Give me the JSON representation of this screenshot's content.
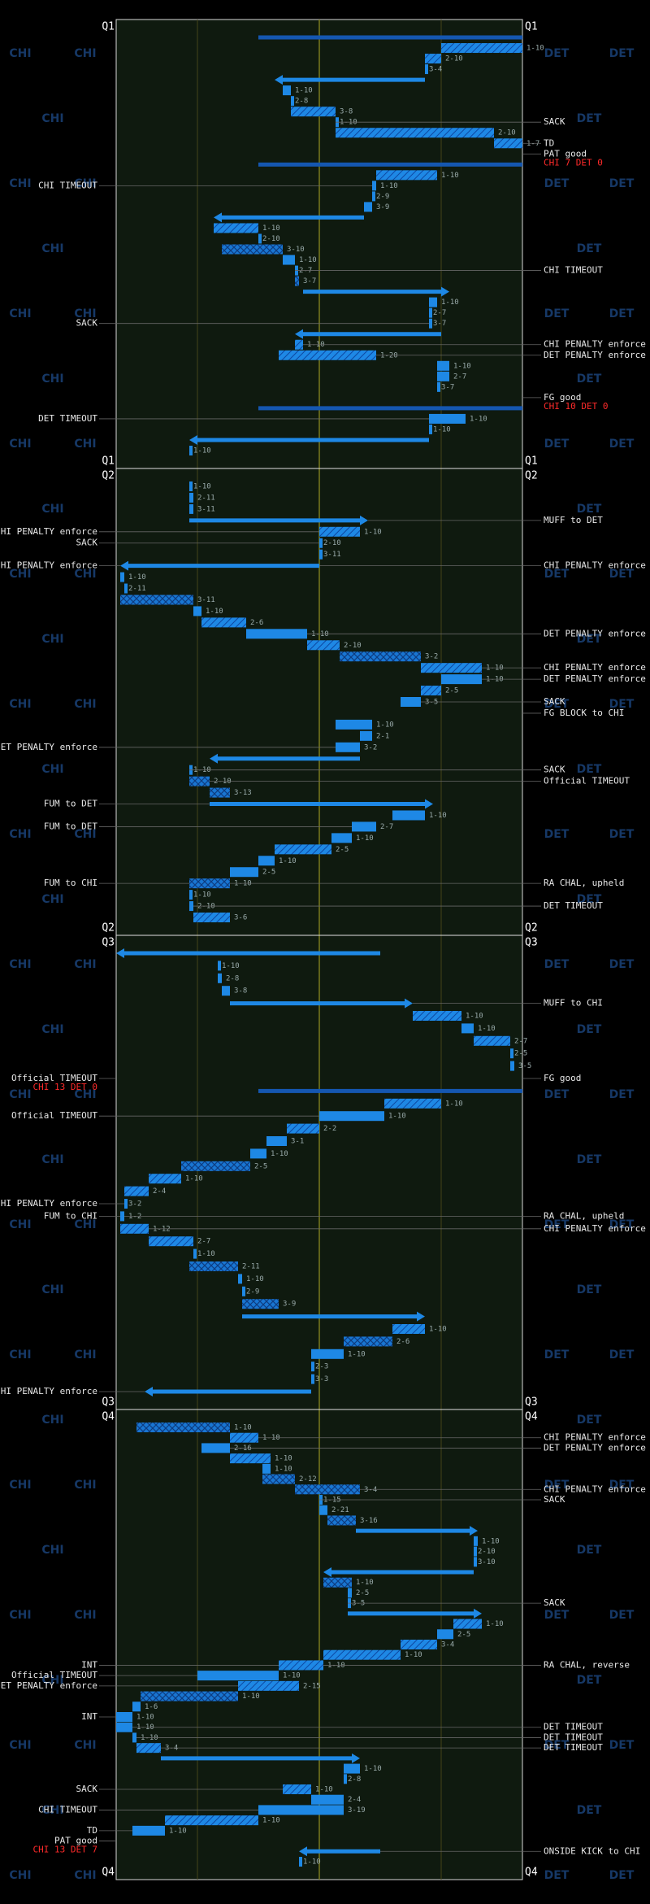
{
  "watermark": {
    "left": "CHI",
    "right": "DET"
  },
  "yard_lines": [
    20,
    50,
    80
  ],
  "quarters": [
    {
      "name": "Q1",
      "plays": [
        {
          "kind": "kick",
          "from": 35,
          "to": 100
        },
        {
          "dd": "1-10",
          "from": 100,
          "to": 80,
          "kind": "pass"
        },
        {
          "dd": "2-10",
          "from": 80,
          "to": 76,
          "kind": "pass"
        },
        {
          "dd": "3-4",
          "from": 76,
          "to": 76,
          "kind": "solid"
        },
        {
          "kind": "punt",
          "from": 76,
          "to": 39
        },
        {
          "dd": "1-10",
          "from": 41,
          "to": 43,
          "kind": "solid"
        },
        {
          "dd": "2-8",
          "from": 43,
          "to": 43,
          "kind": "solid"
        },
        {
          "dd": "3-8",
          "from": 43,
          "to": 54,
          "kind": "pass"
        },
        {
          "dd": "1-10",
          "from": 54,
          "to": 54,
          "kind": "solid",
          "right": "SACK"
        },
        {
          "dd": "2-10",
          "from": 54,
          "to": 93,
          "kind": "pass"
        },
        {
          "dd": "1-7",
          "from": 93,
          "to": 100,
          "kind": "pass",
          "right": "TD"
        },
        {
          "kind": "fg",
          "right": "PAT good",
          "score": "CHI 7 DET 0"
        },
        {
          "kind": "kick",
          "from": 35,
          "to": 100
        },
        {
          "dd": "1-10",
          "from": 79,
          "to": 64,
          "kind": "pass"
        },
        {
          "dd": "1-10",
          "from": 64,
          "to": 63,
          "kind": "solid",
          "left": "CHI TIMEOUT"
        },
        {
          "dd": "2-9",
          "from": 63,
          "to": 63,
          "kind": "solid"
        },
        {
          "dd": "3-9",
          "from": 63,
          "to": 61,
          "kind": "solid"
        },
        {
          "kind": "punt",
          "from": 61,
          "to": 24
        },
        {
          "dd": "1-10",
          "from": 24,
          "to": 35,
          "kind": "pass"
        },
        {
          "dd": "2-10",
          "from": 35,
          "to": 35,
          "kind": "solid"
        },
        {
          "dd": "3-10",
          "from": 26,
          "to": 41,
          "kind": "cross"
        },
        {
          "dd": "1-10",
          "from": 41,
          "to": 44,
          "kind": "solid"
        },
        {
          "dd": "2-7",
          "from": 44,
          "to": 44,
          "kind": "solid",
          "right": "CHI TIMEOUT"
        },
        {
          "dd": "3-7",
          "from": 44,
          "to": 45,
          "kind": "cross"
        },
        {
          "kind": "punt",
          "from": 46,
          "to": 82
        },
        {
          "dd": "1-10",
          "from": 79,
          "to": 77,
          "kind": "solid"
        },
        {
          "dd": "2-7",
          "from": 77,
          "to": 77,
          "kind": "solid"
        },
        {
          "dd": "3-7",
          "from": 77,
          "to": 77,
          "kind": "solid",
          "left": "SACK"
        },
        {
          "kind": "punt",
          "from": 80,
          "to": 44
        },
        {
          "dd": "1-10",
          "from": 44,
          "to": 46,
          "kind": "pass",
          "right": "CHI PENALTY enforce"
        },
        {
          "dd": "1-20",
          "from": 40,
          "to": 64,
          "kind": "pass",
          "right": "DET PENALTY enforce"
        },
        {
          "dd": "1-10",
          "from": 82,
          "to": 79,
          "kind": "solid"
        },
        {
          "dd": "2-7",
          "from": 79,
          "to": 82,
          "kind": "solid"
        },
        {
          "dd": "3-7",
          "from": 79,
          "to": 79,
          "kind": "solid"
        },
        {
          "kind": "fg",
          "right": "FG good",
          "score": "CHI 10 DET 0"
        },
        {
          "kind": "kick",
          "from": 35,
          "to": 100
        },
        {
          "dd": "1-10",
          "from": 86,
          "to": 77,
          "kind": "solid",
          "left": "DET TIMEOUT"
        },
        {
          "dd": "1-10",
          "from": 77,
          "to": 77,
          "kind": "solid"
        },
        {
          "kind": "punt",
          "from": 77,
          "to": 18
        },
        {
          "dd": "1-10",
          "from": 18,
          "to": 18,
          "kind": "solid"
        }
      ]
    },
    {
      "name": "Q2",
      "plays": [
        {
          "dd": "1-10",
          "from": 18,
          "to": 18,
          "kind": "solid"
        },
        {
          "dd": "2-11",
          "from": 18,
          "to": 19,
          "kind": "solid"
        },
        {
          "dd": "3-11",
          "from": 19,
          "to": 18,
          "kind": "solid"
        },
        {
          "kind": "punt",
          "from": 18,
          "to": 62,
          "right": "MUFF to DET"
        },
        {
          "dd": "1-10",
          "from": 60,
          "to": 50,
          "kind": "pass",
          "left": "CHI PENALTY enforce"
        },
        {
          "dd": "2-10",
          "from": 50,
          "to": 50,
          "kind": "solid",
          "left": "SACK"
        },
        {
          "dd": "3-11",
          "from": 50,
          "to": 50,
          "kind": "solid"
        },
        {
          "kind": "punt",
          "from": 50,
          "to": 1,
          "left": "CHI PENALTY enforce",
          "right": "CHI PENALTY enforce"
        },
        {
          "dd": "1-10",
          "from": 1,
          "to": 2,
          "kind": "solid"
        },
        {
          "dd": "2-11",
          "from": 2,
          "to": 2,
          "kind": "solid"
        },
        {
          "dd": "3-11",
          "from": 1,
          "to": 19,
          "kind": "cross"
        },
        {
          "dd": "1-10",
          "from": 19,
          "to": 21,
          "kind": "solid"
        },
        {
          "dd": "2-6",
          "from": 21,
          "to": 32,
          "kind": "pass"
        },
        {
          "dd": "1-10",
          "from": 32,
          "to": 47,
          "kind": "solid",
          "right": "DET PENALTY enforce"
        },
        {
          "dd": "2-10",
          "from": 47,
          "to": 55,
          "kind": "pass"
        },
        {
          "dd": "3-2",
          "from": 55,
          "to": 75,
          "kind": "cross"
        },
        {
          "dd": "1-10",
          "from": 75,
          "to": 90,
          "kind": "pass",
          "right": "CHI PENALTY enforce"
        },
        {
          "dd": "1-10",
          "from": 90,
          "to": 80,
          "kind": "solid",
          "right": "DET PENALTY enforce"
        },
        {
          "dd": "2-5",
          "from": 80,
          "to": 75,
          "kind": "pass"
        },
        {
          "dd": "3-5",
          "from": 75,
          "to": 70,
          "kind": "solid",
          "right": "SACK"
        },
        {
          "kind": "fg",
          "right": "FG BLOCK to CHI"
        },
        {
          "dd": "1-10",
          "from": 54,
          "to": 63,
          "kind": "solid"
        },
        {
          "dd": "2-1",
          "from": 63,
          "to": 60,
          "kind": "solid"
        },
        {
          "dd": "3-2",
          "from": 60,
          "to": 54,
          "kind": "solid",
          "left": "DET PENALTY enforce"
        },
        {
          "kind": "punt",
          "from": 60,
          "to": 23
        },
        {
          "dd": "1-10",
          "from": 18,
          "to": 18,
          "kind": "solid",
          "right": "SACK"
        },
        {
          "dd": "2-10",
          "from": 18,
          "to": 23,
          "kind": "cross",
          "right": "Official TIMEOUT"
        },
        {
          "dd": "3-13",
          "from": 23,
          "to": 28,
          "kind": "cross"
        },
        {
          "kind": "punt",
          "from": 23,
          "to": 78,
          "left": "FUM to DET"
        },
        {
          "dd": "1-10",
          "from": 76,
          "to": 68,
          "kind": "solid"
        },
        {
          "dd": "2-7",
          "from": 64,
          "to": 58,
          "kind": "solid",
          "left": "FUM to DET"
        },
        {
          "dd": "1-10",
          "from": 58,
          "to": 53,
          "kind": "solid"
        },
        {
          "dd": "2-5",
          "from": 53,
          "to": 39,
          "kind": "pass"
        },
        {
          "dd": "1-10",
          "from": 39,
          "to": 35,
          "kind": "solid"
        },
        {
          "dd": "2-5",
          "from": 35,
          "to": 28,
          "kind": "solid"
        },
        {
          "dd": "1-10",
          "from": 28,
          "to": 18,
          "kind": "cross",
          "left": "FUM to CHI",
          "right": "RA CHAL, upheld"
        },
        {
          "dd": "1-10",
          "from": 18,
          "to": 18,
          "kind": "solid"
        },
        {
          "dd": "2-10",
          "from": 18,
          "to": 19,
          "kind": "solid",
          "right": "DET TIMEOUT"
        },
        {
          "dd": "3-6",
          "from": 19,
          "to": 28,
          "kind": "pass"
        }
      ]
    },
    {
      "name": "Q3",
      "plays": [
        {
          "kind": "punt",
          "from": 65,
          "to": 0
        },
        {
          "dd": "1-10",
          "from": 25,
          "to": 25,
          "kind": "solid"
        },
        {
          "dd": "2-8",
          "from": 25,
          "to": 26,
          "kind": "solid"
        },
        {
          "dd": "3-8",
          "from": 26,
          "to": 28,
          "kind": "solid"
        },
        {
          "kind": "punt",
          "from": 28,
          "to": 73,
          "right": "MUFF to CHI"
        },
        {
          "dd": "1-10",
          "from": 73,
          "to": 85,
          "kind": "pass"
        },
        {
          "dd": "1-10",
          "from": 85,
          "to": 88,
          "kind": "solid"
        },
        {
          "dd": "2-7",
          "from": 88,
          "to": 97,
          "kind": "pass"
        },
        {
          "dd": "2-5",
          "from": 97,
          "to": 97,
          "kind": "solid"
        },
        {
          "dd": "3-5",
          "from": 97,
          "to": 98,
          "kind": "solid"
        },
        {
          "kind": "fg",
          "left": "Official TIMEOUT",
          "right": "FG good",
          "score": "CHI 13 DET 0"
        },
        {
          "kind": "kick",
          "from": 35,
          "to": 100
        },
        {
          "dd": "1-10",
          "from": 80,
          "to": 66,
          "kind": "pass"
        },
        {
          "dd": "1-10",
          "from": 66,
          "to": 50,
          "kind": "solid",
          "left": "Official TIMEOUT"
        },
        {
          "dd": "2-2",
          "from": 50,
          "to": 42,
          "kind": "pass"
        },
        {
          "dd": "3-1",
          "from": 42,
          "to": 37,
          "kind": "solid"
        },
        {
          "dd": "1-10",
          "from": 37,
          "to": 33,
          "kind": "solid"
        },
        {
          "dd": "2-5",
          "from": 33,
          "to": 16,
          "kind": "cross"
        },
        {
          "dd": "1-10",
          "from": 16,
          "to": 8,
          "kind": "pass"
        },
        {
          "dd": "2-4",
          "from": 8,
          "to": 2,
          "kind": "pass"
        },
        {
          "dd": "3-2",
          "from": 2,
          "to": 2,
          "kind": "solid",
          "left": "CHI PENALTY enforce"
        },
        {
          "dd": "1-2",
          "from": 2,
          "to": 1,
          "kind": "solid",
          "left": "FUM to CHI",
          "right": "RA CHAL, upheld"
        },
        {
          "dd": "1-12",
          "from": 1,
          "to": 8,
          "kind": "pass",
          "right": "CHI PENALTY enforce"
        },
        {
          "dd": "2-7",
          "from": 8,
          "to": 19,
          "kind": "pass"
        },
        {
          "dd": "1-10",
          "from": 19,
          "to": 19,
          "kind": "solid"
        },
        {
          "dd": "2-11",
          "from": 18,
          "to": 30,
          "kind": "cross"
        },
        {
          "dd": "1-10",
          "from": 30,
          "to": 31,
          "kind": "solid"
        },
        {
          "dd": "2-9",
          "from": 31,
          "to": 31,
          "kind": "solid"
        },
        {
          "dd": "3-9",
          "from": 31,
          "to": 40,
          "kind": "cross"
        },
        {
          "kind": "punt",
          "from": 31,
          "to": 76
        },
        {
          "dd": "1-10",
          "from": 76,
          "to": 68,
          "kind": "pass"
        },
        {
          "dd": "2-6",
          "from": 68,
          "to": 56,
          "kind": "cross"
        },
        {
          "dd": "1-10",
          "from": 56,
          "to": 48,
          "kind": "solid"
        },
        {
          "dd": "2-3",
          "from": 48,
          "to": 48,
          "kind": "solid"
        },
        {
          "dd": "3-3",
          "from": 48,
          "to": 48,
          "kind": "solid"
        },
        {
          "kind": "punt",
          "from": 48,
          "to": 7,
          "left": "CHI PENALTY enforce"
        }
      ]
    },
    {
      "name": "Q4",
      "plays": [
        {
          "dd": "1-10",
          "from": 5,
          "to": 28,
          "kind": "cross"
        },
        {
          "dd": "1-10",
          "from": 28,
          "to": 35,
          "kind": "pass",
          "right": "CHI PENALTY enforce"
        },
        {
          "dd": "2-16",
          "from": 21,
          "to": 28,
          "kind": "solid",
          "right": "DET PENALTY enforce"
        },
        {
          "dd": "1-10",
          "from": 28,
          "to": 38,
          "kind": "pass"
        },
        {
          "dd": "1-10",
          "from": 38,
          "to": 36,
          "kind": "solid"
        },
        {
          "dd": "2-12",
          "from": 36,
          "to": 44,
          "kind": "cross"
        },
        {
          "dd": "3-4",
          "from": 44,
          "to": 60,
          "kind": "cross",
          "right": "CHI PENALTY enforce"
        },
        {
          "dd": "1-15",
          "from": 50,
          "to": 50,
          "kind": "solid",
          "right": "SACK"
        },
        {
          "dd": "2-21",
          "from": 50,
          "to": 52,
          "kind": "solid"
        },
        {
          "dd": "3-16",
          "from": 52,
          "to": 59,
          "kind": "cross"
        },
        {
          "kind": "punt",
          "from": 59,
          "to": 89
        },
        {
          "dd": "1-10",
          "from": 89,
          "to": 88,
          "kind": "solid"
        },
        {
          "dd": "2-10",
          "from": 88,
          "to": 88,
          "kind": "solid"
        },
        {
          "dd": "3-10",
          "from": 88,
          "to": 88,
          "kind": "solid"
        },
        {
          "kind": "punt",
          "from": 88,
          "to": 51
        },
        {
          "dd": "1-10",
          "from": 51,
          "to": 58,
          "kind": "cross"
        },
        {
          "dd": "2-5",
          "from": 58,
          "to": 57,
          "kind": "solid"
        },
        {
          "dd": "3-5",
          "from": 57,
          "to": 57,
          "kind": "solid",
          "right": "SACK"
        },
        {
          "kind": "punt",
          "from": 57,
          "to": 90
        },
        {
          "dd": "1-10",
          "from": 90,
          "to": 83,
          "kind": "pass"
        },
        {
          "dd": "2-5",
          "from": 83,
          "to": 79,
          "kind": "solid"
        },
        {
          "dd": "3-4",
          "from": 79,
          "to": 70,
          "kind": "pass"
        },
        {
          "dd": "1-10",
          "from": 70,
          "to": 51,
          "kind": "pass"
        },
        {
          "dd": "1-10",
          "from": 51,
          "to": 40,
          "kind": "pass",
          "left": "INT",
          "right": "RA CHAL, reverse"
        },
        {
          "dd": "1-10",
          "from": 40,
          "to": 20,
          "kind": "solid",
          "left": "Official TIMEOUT"
        },
        {
          "dd": "2-15",
          "from": 45,
          "to": 30,
          "kind": "pass",
          "left": "DET PENALTY enforce"
        },
        {
          "dd": "1-10",
          "from": 30,
          "to": 6,
          "kind": "cross"
        },
        {
          "dd": "1-6",
          "from": 6,
          "to": 4,
          "kind": "solid"
        },
        {
          "dd": "1-10",
          "from": 4,
          "to": 0,
          "kind": "solid",
          "left": "INT"
        },
        {
          "dd": "1-10",
          "from": 0,
          "to": 4,
          "kind": "solid",
          "right": "DET TIMEOUT"
        },
        {
          "dd": "1-10",
          "from": 4,
          "to": 5,
          "kind": "solid",
          "right": "DET TIMEOUT"
        },
        {
          "dd": "3-4",
          "from": 5,
          "to": 11,
          "kind": "pass",
          "right": "DET TIMEOUT"
        },
        {
          "kind": "punt",
          "from": 11,
          "to": 60
        },
        {
          "dd": "1-10",
          "from": 56,
          "to": 60,
          "kind": "solid"
        },
        {
          "dd": "2-8",
          "from": 56,
          "to": 56,
          "kind": "solid"
        },
        {
          "dd": "1-10",
          "from": 41,
          "to": 48,
          "kind": "pass",
          "left": "SACK"
        },
        {
          "dd": "2-4",
          "from": 48,
          "to": 56,
          "kind": "solid"
        },
        {
          "dd": "3-19",
          "from": 35,
          "to": 56,
          "kind": "solid",
          "left": "CHI TIMEOUT"
        },
        {
          "dd": "1-10",
          "from": 12,
          "to": 35,
          "kind": "pass"
        },
        {
          "dd": "1-10",
          "from": 4,
          "to": 12,
          "kind": "solid",
          "left": "TD"
        },
        {
          "kind": "fg",
          "left": "PAT good",
          "score": "CHI 13 DET 7"
        },
        {
          "kind": "punt",
          "from": 65,
          "to": 45,
          "right": "ONSIDE KICK to CHI"
        },
        {
          "dd": "1-10",
          "from": 45,
          "to": 45,
          "kind": "solid"
        }
      ]
    }
  ]
}
